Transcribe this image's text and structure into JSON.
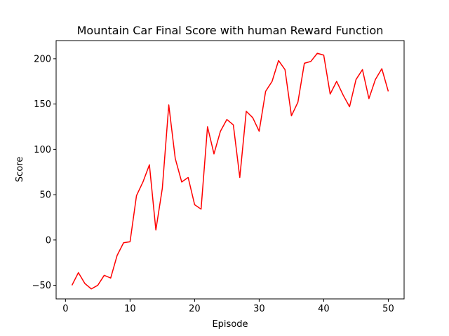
{
  "chart_data": {
    "type": "line",
    "title": "Mountain Car Final Score with human Reward Function",
    "xlabel": "Episode",
    "ylabel": "Score",
    "xlim": [
      -1.45,
      52.45
    ],
    "ylim": [
      -65,
      220
    ],
    "grid": false,
    "xticks": [
      0,
      10,
      20,
      30,
      40,
      50
    ],
    "yticks": [
      -50,
      0,
      50,
      100,
      150,
      200
    ],
    "series": [
      {
        "color": "#ff0000",
        "x": [
          1,
          2,
          3,
          4,
          5,
          6,
          7,
          8,
          9,
          10,
          11,
          12,
          13,
          14,
          15,
          16,
          17,
          18,
          19,
          20,
          21,
          22,
          23,
          24,
          25,
          26,
          27,
          28,
          29,
          30,
          31,
          32,
          33,
          34,
          35,
          36,
          37,
          38,
          39,
          40,
          41,
          42,
          43,
          44,
          45,
          46,
          47,
          48,
          49,
          50
        ],
        "y": [
          -50,
          -36,
          -48,
          -54,
          -50,
          -39,
          -42,
          -17,
          -3,
          -2,
          49,
          64,
          83,
          11,
          57,
          149,
          90,
          64,
          69,
          39,
          34,
          125,
          95,
          120,
          133,
          127,
          69,
          142,
          135,
          120,
          164,
          175,
          198,
          188,
          137,
          152,
          195,
          197,
          206,
          204,
          161,
          175,
          160,
          147,
          177,
          188,
          156,
          177,
          189,
          164
        ]
      }
    ]
  }
}
